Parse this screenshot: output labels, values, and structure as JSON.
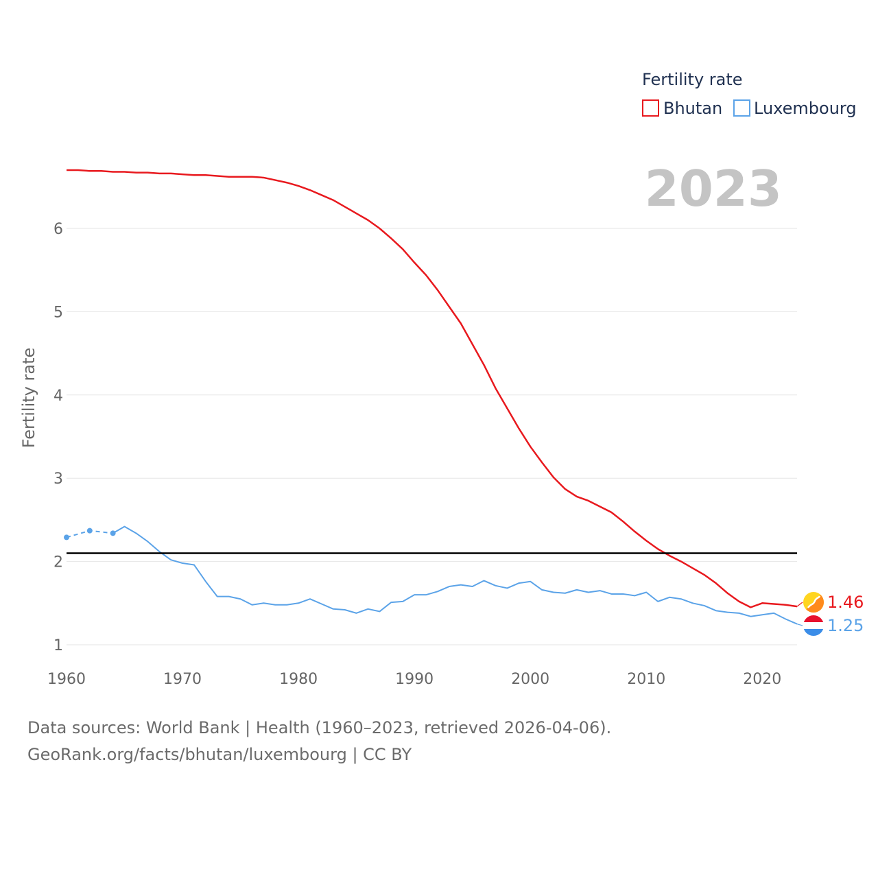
{
  "chart_data": {
    "type": "line",
    "title": "Fertility rate",
    "xlabel": "",
    "ylabel": "Fertility rate",
    "xlim": [
      1960,
      2023
    ],
    "ylim": [
      1,
      7
    ],
    "yticks": [
      1,
      2,
      3,
      4,
      5,
      6
    ],
    "xticks": [
      1960,
      1970,
      1980,
      1990,
      2000,
      2010,
      2020
    ],
    "year_label": "2023",
    "reference_line": 2.1,
    "legend_position": "top-right",
    "series": [
      {
        "name": "Bhutan",
        "color": "#e8191e",
        "end_label": "1.46",
        "flag": "bhutan-flag",
        "x": [
          1960,
          1961,
          1962,
          1963,
          1964,
          1965,
          1966,
          1967,
          1968,
          1969,
          1970,
          1971,
          1972,
          1973,
          1974,
          1975,
          1976,
          1977,
          1978,
          1979,
          1980,
          1981,
          1982,
          1983,
          1984,
          1985,
          1986,
          1987,
          1988,
          1989,
          1990,
          1991,
          1992,
          1993,
          1994,
          1995,
          1996,
          1997,
          1998,
          1999,
          2000,
          2001,
          2002,
          2003,
          2004,
          2005,
          2006,
          2007,
          2008,
          2009,
          2010,
          2011,
          2012,
          2013,
          2014,
          2015,
          2016,
          2017,
          2018,
          2019,
          2020,
          2021,
          2022,
          2023
        ],
        "values": [
          6.7,
          6.7,
          6.69,
          6.69,
          6.68,
          6.68,
          6.67,
          6.67,
          6.66,
          6.66,
          6.65,
          6.64,
          6.64,
          6.63,
          6.62,
          6.62,
          6.62,
          6.61,
          6.58,
          6.55,
          6.51,
          6.46,
          6.4,
          6.34,
          6.26,
          6.18,
          6.1,
          6.0,
          5.88,
          5.75,
          5.59,
          5.44,
          5.26,
          5.06,
          4.86,
          4.61,
          4.36,
          4.08,
          3.84,
          3.6,
          3.38,
          3.19,
          3.01,
          2.87,
          2.78,
          2.73,
          2.66,
          2.59,
          2.48,
          2.36,
          2.25,
          2.15,
          2.07,
          2.0,
          1.92,
          1.84,
          1.74,
          1.62,
          1.52,
          1.45,
          1.5,
          1.49,
          1.48,
          1.46
        ]
      },
      {
        "name": "Luxembourg",
        "color": "#5ba3e8",
        "end_label": "1.25",
        "flag": "luxembourg-flag",
        "x": [
          1960,
          1961,
          1962,
          1963,
          1964,
          1965,
          1966,
          1967,
          1968,
          1969,
          1970,
          1971,
          1972,
          1973,
          1974,
          1975,
          1976,
          1977,
          1978,
          1979,
          1980,
          1981,
          1982,
          1983,
          1984,
          1985,
          1986,
          1987,
          1988,
          1989,
          1990,
          1991,
          1992,
          1993,
          1994,
          1995,
          1996,
          1997,
          1998,
          1999,
          2000,
          2001,
          2002,
          2003,
          2004,
          2005,
          2006,
          2007,
          2008,
          2009,
          2010,
          2011,
          2012,
          2013,
          2014,
          2015,
          2016,
          2017,
          2018,
          2019,
          2020,
          2021,
          2022,
          2023
        ],
        "values": [
          2.29,
          null,
          2.37,
          null,
          2.34,
          2.42,
          2.34,
          2.24,
          2.12,
          2.02,
          1.98,
          1.96,
          1.76,
          1.58,
          1.58,
          1.55,
          1.48,
          1.5,
          1.48,
          1.48,
          1.5,
          1.55,
          1.49,
          1.43,
          1.42,
          1.38,
          1.43,
          1.4,
          1.51,
          1.52,
          1.6,
          1.6,
          1.64,
          1.7,
          1.72,
          1.7,
          1.77,
          1.71,
          1.68,
          1.74,
          1.76,
          1.66,
          1.63,
          1.62,
          1.66,
          1.63,
          1.65,
          1.61,
          1.61,
          1.59,
          1.63,
          1.52,
          1.57,
          1.55,
          1.5,
          1.47,
          1.41,
          1.39,
          1.38,
          1.34,
          1.36,
          1.38,
          1.31,
          1.25
        ]
      }
    ]
  },
  "source": {
    "line1": "Data sources: World Bank | Health (1960–2023, retrieved 2026-04-06).",
    "line2": "GeoRank.org/facts/bhutan/luxembourg | CC BY"
  }
}
